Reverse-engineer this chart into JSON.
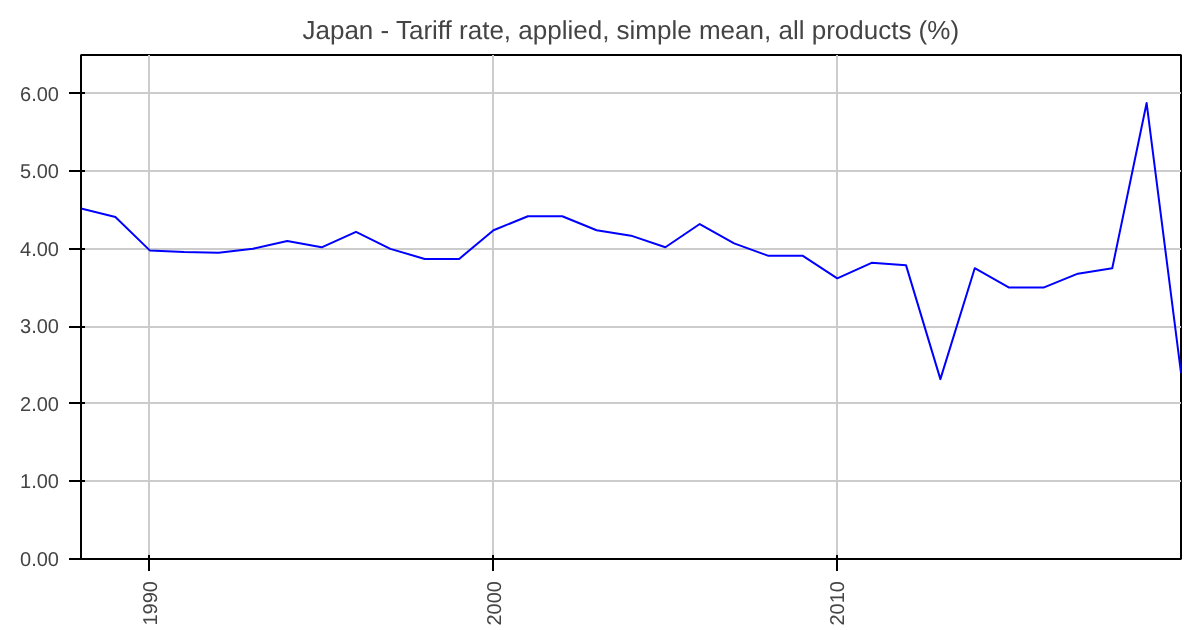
{
  "chart_data": {
    "type": "line",
    "title": "Japan - Tariff rate, applied, simple mean, all products (%)",
    "x": [
      1988,
      1989,
      1990,
      1991,
      1992,
      1993,
      1994,
      1995,
      1996,
      1997,
      1998,
      1999,
      2000,
      2001,
      2002,
      2003,
      2004,
      2005,
      2006,
      2007,
      2008,
      2009,
      2010,
      2011,
      2012,
      2013,
      2014,
      2015,
      2016,
      2017,
      2018,
      2019,
      2020
    ],
    "series": [
      {
        "color": "#0000ff",
        "values": [
          4.52,
          4.41,
          3.98,
          3.96,
          3.95,
          4.0,
          4.1,
          4.02,
          4.22,
          4.0,
          3.87,
          3.87,
          4.24,
          4.42,
          4.42,
          4.24,
          4.17,
          4.02,
          4.32,
          4.07,
          3.91,
          3.91,
          3.62,
          3.82,
          3.79,
          2.32,
          3.75,
          3.5,
          3.5,
          3.68,
          3.75,
          5.88,
          2.4
        ]
      }
    ],
    "xlim": [
      1988,
      2020
    ],
    "xticks": [
      1990,
      2000,
      2010
    ],
    "ylim": [
      0,
      6.5
    ],
    "yticks": [
      {
        "value": 0,
        "label": "0.00"
      },
      {
        "value": 1,
        "label": "1.00"
      },
      {
        "value": 2,
        "label": "2.00"
      },
      {
        "value": 3,
        "label": "3.00"
      },
      {
        "value": 4,
        "label": "4.00"
      },
      {
        "value": 5,
        "label": "5.00"
      },
      {
        "value": 6,
        "label": "6.00"
      }
    ],
    "grid": true,
    "marker": "none",
    "line_style": "solid"
  }
}
